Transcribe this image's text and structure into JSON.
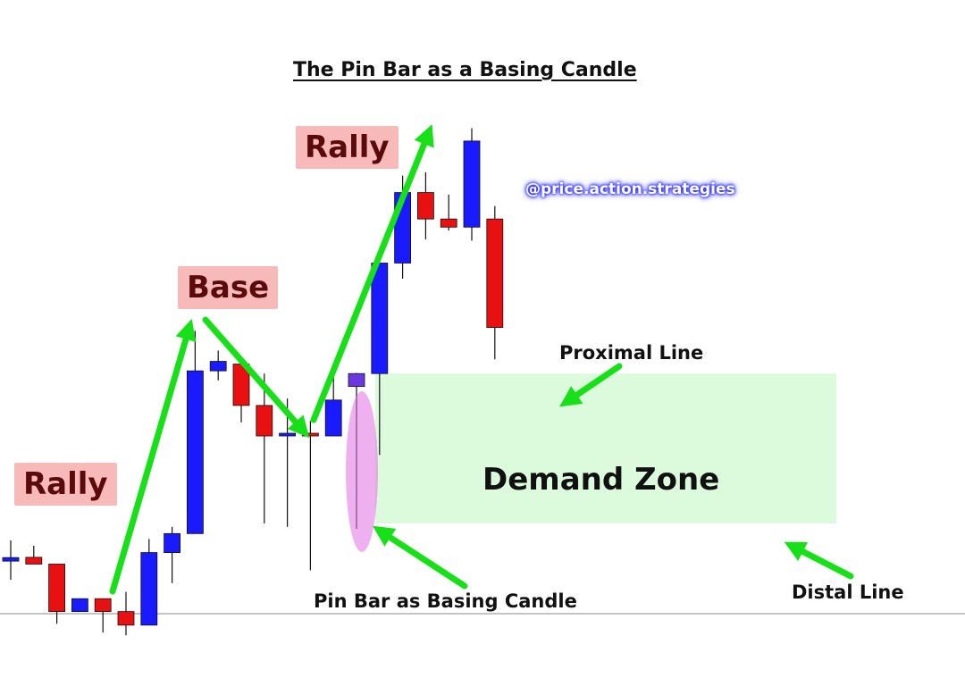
{
  "chart_data": {
    "type": "candlestick",
    "title": "The Pin Bar as a Basing Candle",
    "watermark": "@price.action.strategies",
    "ylim": [
      0,
      100
    ],
    "colors": {
      "bull": "#1a1aff",
      "bear": "#e81010",
      "pin": "#6b38e0",
      "arrow": "#18e018",
      "zone": "#dcfadc",
      "tag_bg": "#f8b9b9",
      "tag_text": "#5a0a0a"
    },
    "candles": [
      {
        "o": 17.5,
        "h": 20.3,
        "l": 14.5,
        "c": 17.5
      },
      {
        "o": 17.8,
        "h": 19.5,
        "l": 16.8,
        "c": 16.8
      },
      {
        "o": 16.8,
        "h": 16.8,
        "l": 8.0,
        "c": 9.8
      },
      {
        "o": 9.8,
        "h": 11.7,
        "l": 9.8,
        "c": 11.7
      },
      {
        "o": 11.7,
        "h": 11.7,
        "l": 6.7,
        "c": 9.8
      },
      {
        "o": 9.8,
        "h": 12.7,
        "l": 6.3,
        "c": 7.8
      },
      {
        "o": 7.8,
        "h": 20.5,
        "l": 7.8,
        "c": 18.5
      },
      {
        "o": 18.5,
        "h": 22.3,
        "l": 14.0,
        "c": 21.3
      },
      {
        "o": 21.3,
        "h": 51.2,
        "l": 21.3,
        "c": 45.3
      },
      {
        "o": 45.3,
        "h": 48.3,
        "l": 43.9,
        "c": 46.7
      },
      {
        "o": 46.3,
        "h": 46.3,
        "l": 37.7,
        "c": 40.2
      },
      {
        "o": 40.2,
        "h": 44.9,
        "l": 22.8,
        "c": 35.7
      },
      {
        "o": 35.7,
        "h": 41.2,
        "l": 22.3,
        "c": 36.1
      },
      {
        "o": 36.1,
        "h": 37.9,
        "l": 15.9,
        "c": 35.7
      },
      {
        "o": 35.7,
        "h": 44.9,
        "l": 35.7,
        "c": 41.0
      },
      {
        "o": 43.0,
        "h": 45.0,
        "l": 22.0,
        "c": 44.9
      },
      {
        "o": 44.9,
        "h": 61.8,
        "l": 32.9,
        "c": 61.2
      },
      {
        "o": 61.2,
        "h": 74.1,
        "l": 58.9,
        "c": 71.6
      },
      {
        "o": 71.6,
        "h": 74.6,
        "l": 64.7,
        "c": 67.7
      },
      {
        "o": 67.7,
        "h": 71.3,
        "l": 66.0,
        "c": 66.5
      },
      {
        "o": 66.5,
        "h": 81.1,
        "l": 64.5,
        "c": 79.2
      },
      {
        "o": 67.7,
        "h": 69.6,
        "l": 47.0,
        "c": 51.7
      }
    ],
    "demand_zone": {
      "top": 44.9,
      "bottom": 22.8,
      "label": "Demand Zone"
    },
    "labels": {
      "rally_1": "Rally",
      "base": "Base",
      "rally_2": "Rally",
      "proximal": "Proximal Line",
      "distal": "Distal Line",
      "pin_bar": "Pin Bar as Basing Candle"
    }
  }
}
